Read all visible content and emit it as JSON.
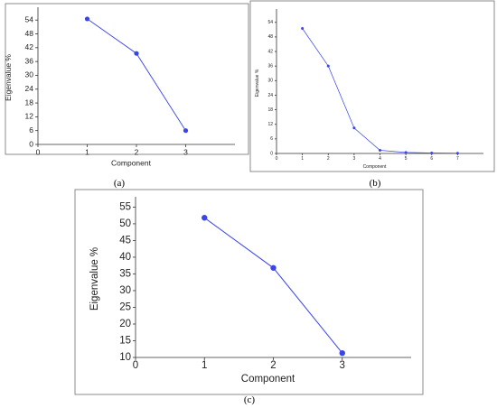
{
  "panels": {
    "a": {
      "caption": "(a)"
    },
    "b": {
      "caption": "(b)"
    },
    "c": {
      "caption": "(c)"
    }
  },
  "chart_data": [
    {
      "type": "line",
      "panel": "a",
      "xlabel": "Component",
      "ylabel": "Eigenvalue %",
      "x": [
        1,
        2,
        3
      ],
      "values": [
        54.5,
        39.5,
        6.0
      ],
      "xlim": [
        0,
        4
      ],
      "ylim": [
        0,
        58
      ],
      "xticks": [
        "0",
        "1",
        "2",
        "3"
      ],
      "yticks": [
        "0",
        "6",
        "12",
        "18",
        "24",
        "30",
        "36",
        "42",
        "48",
        "54"
      ],
      "ytick_values": [
        0,
        6,
        12,
        18,
        24,
        30,
        36,
        42,
        48,
        54
      ],
      "color": "#3a45e8",
      "grid": false
    },
    {
      "type": "line",
      "panel": "b",
      "xlabel": "Component",
      "ylabel": "Eigenvalue %",
      "x": [
        1,
        2,
        3,
        4,
        5,
        6,
        7
      ],
      "values": [
        51.5,
        36.0,
        10.5,
        1.3,
        0.4,
        0.2,
        0.1
      ],
      "xlim": [
        0,
        8
      ],
      "ylim": [
        0,
        58
      ],
      "xticks": [
        "0",
        "1",
        "2",
        "3",
        "4",
        "5",
        "6",
        "7"
      ],
      "yticks": [
        "0",
        "6",
        "12",
        "18",
        "24",
        "30",
        "36",
        "42",
        "48",
        "54"
      ],
      "ytick_values": [
        0,
        6,
        12,
        18,
        24,
        30,
        36,
        42,
        48,
        54
      ],
      "color": "#3a45e8",
      "grid": false
    },
    {
      "type": "line",
      "panel": "c",
      "xlabel": "Component",
      "ylabel": "Eigenvalue %",
      "x": [
        1,
        2,
        3
      ],
      "values": [
        51.8,
        36.8,
        11.3
      ],
      "xlim": [
        0,
        4
      ],
      "ylim": [
        10,
        57
      ],
      "xticks": [
        "0",
        "1",
        "2",
        "3"
      ],
      "yticks": [
        "10",
        "15",
        "20",
        "25",
        "30",
        "35",
        "40",
        "45",
        "50",
        "55"
      ],
      "ytick_values": [
        10,
        15,
        20,
        25,
        30,
        35,
        40,
        45,
        50,
        55
      ],
      "color": "#3a45e8",
      "grid": false
    }
  ]
}
